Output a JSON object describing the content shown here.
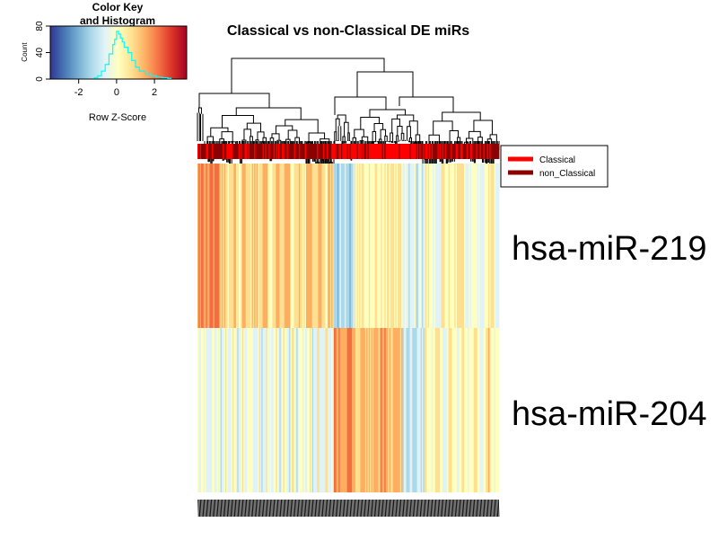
{
  "chart_data": {
    "type": "heatmap",
    "title": "Classical vs non-Classical DE miRs",
    "rows": [
      "hsa-miR-219",
      "hsa-miR-204"
    ],
    "column_count": 250,
    "column_dendrogram": true,
    "column_side_colors": {
      "legend": [
        {
          "label": "Classical",
          "color": "#ff0000"
        },
        {
          "label": "non_Classical",
          "color": "#8b0000"
        }
      ]
    },
    "color_key": {
      "title_line1": "Color Key",
      "title_line2": "and Histogram",
      "xlabel": "Row Z-Score",
      "ylabel": "Count",
      "x_ticks": [
        "-2",
        "0",
        "2"
      ],
      "y_ticks": [
        "0",
        "40",
        "80"
      ],
      "xlim": [
        -3.5,
        3.7
      ],
      "ylim": [
        0,
        80
      ],
      "palette": [
        "#313695",
        "#4575b4",
        "#74add1",
        "#abd9e9",
        "#e0f3f8",
        "#ffffbf",
        "#fee090",
        "#fdae61",
        "#f46d43",
        "#d73027",
        "#a50026"
      ],
      "histogram_line_color": "#00ffff",
      "histogram": {
        "x": [
          -1.2,
          -1.0,
          -0.8,
          -0.6,
          -0.4,
          -0.2,
          -0.1,
          0.0,
          0.1,
          0.2,
          0.3,
          0.4,
          0.6,
          0.8,
          1.0,
          1.2,
          1.5,
          1.8,
          2.1,
          2.4,
          2.7
        ],
        "counts": [
          2,
          5,
          12,
          22,
          38,
          52,
          60,
          72,
          68,
          62,
          56,
          48,
          40,
          28,
          18,
          12,
          8,
          5,
          3,
          2,
          1
        ]
      }
    }
  }
}
